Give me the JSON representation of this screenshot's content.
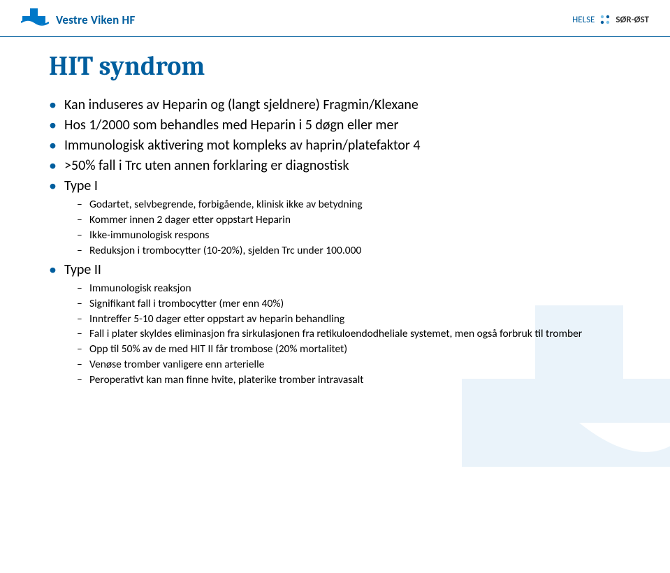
{
  "header": {
    "brand_left": "Vestre Viken HF",
    "brand_right_1": "HELSE",
    "brand_right_2": "SØR-ØST",
    "logo_color": "#0078c8",
    "accent_color": "#005e9e"
  },
  "slide": {
    "title": "HIT syndrom",
    "title_color": "#005e9e",
    "title_fontsize": 38,
    "body_fontsize": 20,
    "sub_fontsize": 15.5,
    "bullets": [
      {
        "text": "Kan induseres av Heparin og (langt sjeldnere) Fragmin/Klexane"
      },
      {
        "text": "Hos 1/2000 som behandles med Heparin i 5 døgn eller mer"
      },
      {
        "text": "Immunologisk aktivering mot kompleks av haprin/platefaktor 4"
      },
      {
        "text": ">50% fall i Trc uten annen forklaring er diagnostisk"
      },
      {
        "text": "Type I",
        "children": [
          "Godartet, selvbegrende, forbigående, klinisk ikke av betydning",
          "Kommer innen 2 dager etter oppstart Heparin",
          "Ikke-immunologisk respons",
          "Reduksjon i trombocytter (10-20%), sjelden Trc under 100.000"
        ]
      },
      {
        "text": "Type II",
        "children": [
          "Immunologisk reaksjon",
          "Signifikant fall i trombocytter (mer enn 40%)",
          "Inntreffer 5-10 dager etter oppstart av heparin behandling",
          "Fall i plater skyldes eliminasjon fra sirkulasjonen fra retikuloendodheliale systemet, men også forbruk til tromber",
          "Opp til 50% av de med HIT II får trombose (20% mortalitet)",
          "Venøse tromber vanligere enn arterielle",
          "Peroperativt kan man finne hvite, platerike tromber intravasalt"
        ]
      }
    ]
  }
}
